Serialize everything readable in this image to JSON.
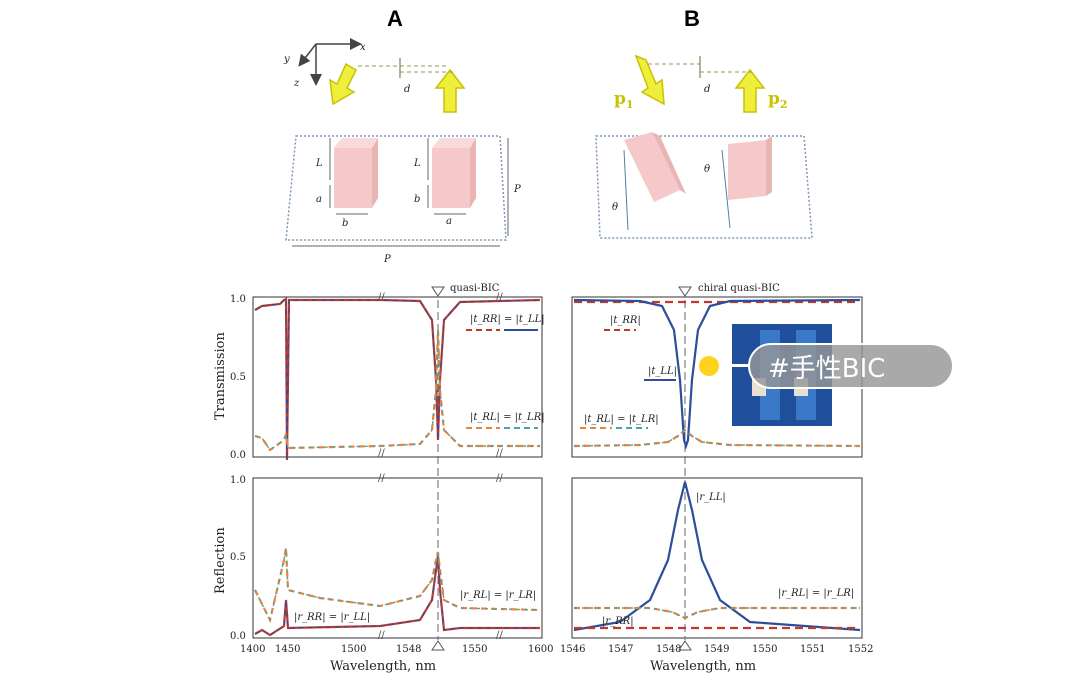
{
  "figure": {
    "panel_a_label": "A",
    "panel_b_label": "B",
    "axes_labels": {
      "x": "x",
      "y": "y",
      "z": "z"
    },
    "dimension_labels": {
      "d": "d",
      "L": "L",
      "a": "a",
      "b": "b",
      "P": "P",
      "theta": "θ"
    },
    "dipole_labels": {
      "p1_base": "p",
      "p1_sub": "1",
      "p2_base": "p",
      "p2_sub": "2"
    }
  },
  "chart_data": [
    {
      "type": "line",
      "panel": "A-transmission",
      "ylabel": "Transmission",
      "ylim": [
        0,
        1
      ],
      "yticks": [
        "0.0",
        "0.5",
        "1.0"
      ],
      "marker_label": "quasi-BIC",
      "annotations": [
        "|t_RR| = |t_LL|",
        "|t_RL| = |t_LR|"
      ],
      "series": [
        {
          "name": "|t_RR| = |t_LL|",
          "x": [
            1400,
            1410,
            1440,
            1442,
            1450,
            1520,
            1530,
            1535,
            1540,
            1545,
            1600
          ],
          "y": [
            0.95,
            0.97,
            0.98,
            0.97,
            0.98,
            0.98,
            0.95,
            0.6,
            0.05,
            0.8,
            0.98
          ]
        },
        {
          "name": "|t_RL| = |t_LR|",
          "x": [
            1400,
            1410,
            1440,
            1442,
            1450,
            1520,
            1530,
            1535,
            1540,
            1545,
            1600
          ],
          "y": [
            0.12,
            0.05,
            0.14,
            0.1,
            0.08,
            0.06,
            0.07,
            0.25,
            0.6,
            0.12,
            0.07
          ]
        }
      ]
    },
    {
      "type": "line",
      "panel": "A-reflection",
      "ylabel": "Reflection",
      "xlabel": "Wavelength, nm",
      "ylim": [
        0,
        1
      ],
      "yticks": [
        "0.0",
        "0.5",
        "1.0"
      ],
      "xticks": [
        "1400",
        "1450",
        "1500",
        "1548",
        "1550",
        "1600"
      ],
      "annotations": [
        "|r_RR| = |r_LL|",
        "|r_RL| = |r_LR|"
      ],
      "series": [
        {
          "name": "|r_RR| = |r_LL|",
          "x": [
            1400,
            1410,
            1440,
            1442,
            1460,
            1520,
            1538,
            1540,
            1545,
            1600
          ],
          "y": [
            0.02,
            0.01,
            0.04,
            0.02,
            0.03,
            0.05,
            0.3,
            0.55,
            0.05,
            0.04
          ]
        },
        {
          "name": "|r_RL| = |r_LR|",
          "x": [
            1400,
            1410,
            1440,
            1442,
            1460,
            1520,
            1538,
            1540,
            1545,
            1600
          ],
          "y": [
            0.28,
            0.1,
            0.5,
            0.25,
            0.2,
            0.18,
            0.3,
            0.5,
            0.18,
            0.17
          ]
        }
      ]
    },
    {
      "type": "line",
      "panel": "B-transmission",
      "ylim": [
        0,
        1
      ],
      "marker_label": "chiral quasi-BIC",
      "annotations": [
        "|t_RR|",
        "|t_LL|",
        "|t_RL| = |t_LR|"
      ],
      "series": [
        {
          "name": "|t_RR|",
          "x": [
            1546,
            1552
          ],
          "y": [
            0.97,
            0.97
          ]
        },
        {
          "name": "|t_LL|",
          "x": [
            1546,
            1547,
            1548,
            1548.3,
            1548.6,
            1549.5,
            1552
          ],
          "y": [
            0.98,
            0.95,
            0.6,
            0.05,
            0.6,
            0.95,
            0.98
          ]
        },
        {
          "name": "|t_RL| = |t_LR|",
          "x": [
            1546,
            1547.5,
            1548.2,
            1548.3,
            1548.4,
            1549,
            1552
          ],
          "y": [
            0.05,
            0.06,
            0.12,
            0.1,
            0.12,
            0.06,
            0.05
          ]
        }
      ]
    },
    {
      "type": "line",
      "panel": "B-reflection",
      "xlabel": "Wavelength, nm",
      "ylim": [
        0,
        1
      ],
      "xticks": [
        "1546",
        "1547",
        "1548",
        "1549",
        "1550",
        "1551",
        "1552"
      ],
      "annotations": [
        "|r_LL|",
        "|r_RL| = |r_LR|",
        "|r_RR|"
      ],
      "series": [
        {
          "name": "|r_LL|",
          "x": [
            1546,
            1547,
            1547.8,
            1548.3,
            1548.8,
            1549.6,
            1552
          ],
          "y": [
            0.03,
            0.06,
            0.4,
            0.98,
            0.4,
            0.06,
            0.03
          ]
        },
        {
          "name": "|r_RL| = |r_LR|",
          "x": [
            1546,
            1547.8,
            1548.3,
            1548.8,
            1552
          ],
          "y": [
            0.18,
            0.17,
            0.12,
            0.17,
            0.18
          ]
        },
        {
          "name": "|r_RR|",
          "x": [
            1546,
            1552
          ],
          "y": [
            0.04,
            0.04
          ]
        }
      ]
    }
  ],
  "overlay_tag": {
    "text": "#手性BIC",
    "accent": "#ffd21f"
  },
  "colors": {
    "red": "#c0392b",
    "blue": "#2e4e9a",
    "orange": "#e8833a",
    "teal": "#4aa3a8",
    "cube": "#f5c9c9"
  }
}
